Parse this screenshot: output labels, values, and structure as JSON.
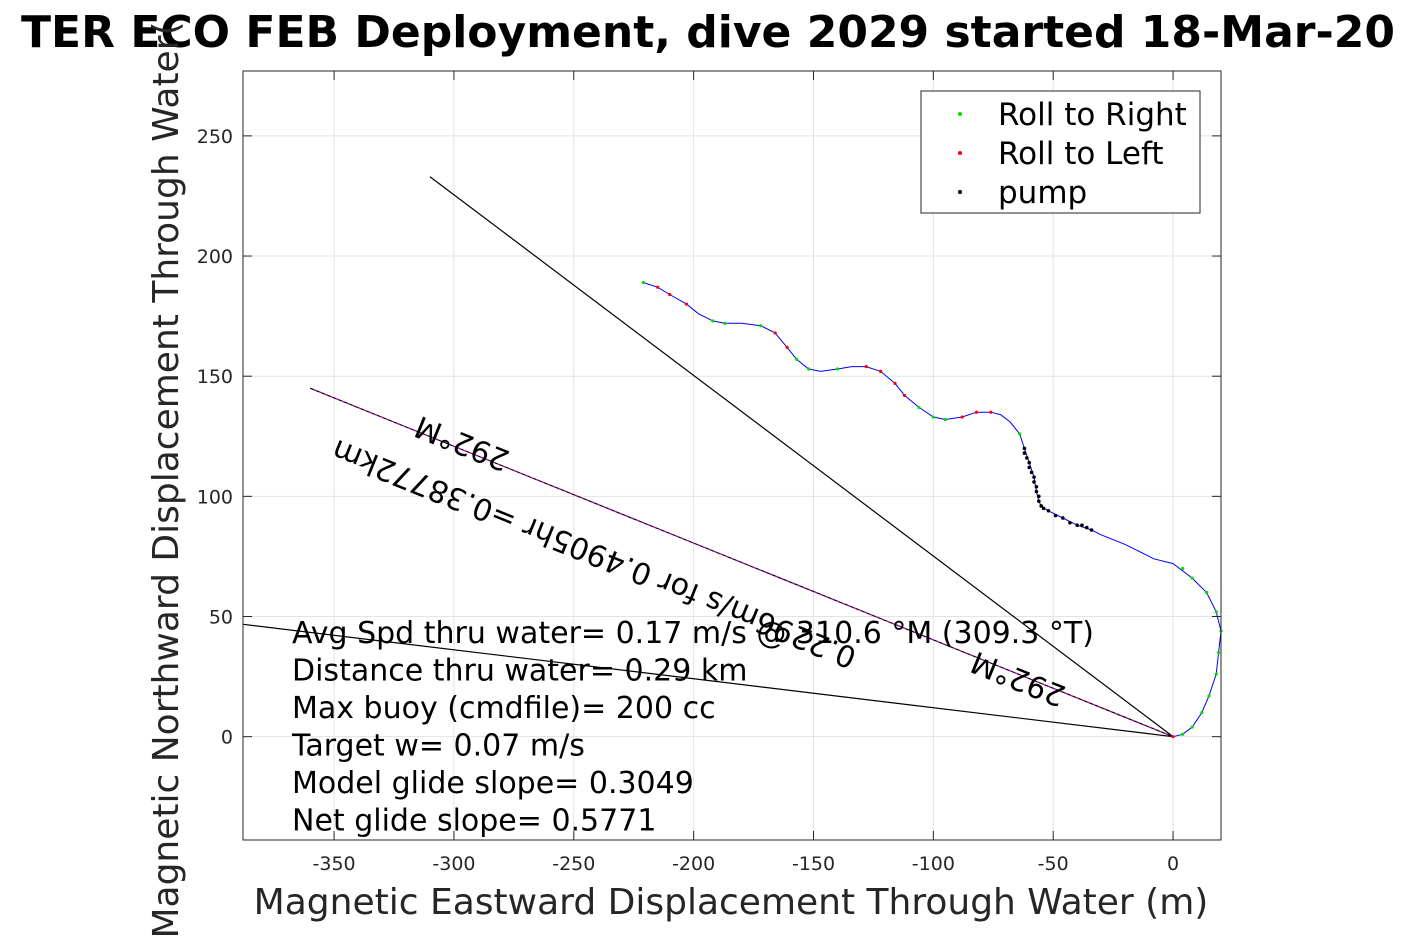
{
  "chart_data": {
    "type": "scatter",
    "title": "TER ECO FEB Deployment, dive 2029 started 18-Mar-20",
    "xlabel": "Magnetic Eastward Displacement Through Water (m)",
    "ylabel": "Magnetic Northward Displacement Through Water(",
    "xlim": [
      -388,
      20
    ],
    "ylim": [
      -43,
      277
    ],
    "xticks": [
      -350,
      -300,
      -250,
      -200,
      -150,
      -100,
      -50,
      0
    ],
    "yticks": [
      0,
      50,
      100,
      150,
      200,
      250
    ],
    "xtick_labels": [
      "-350",
      "-300",
      "-250",
      "-200",
      "-150",
      "-100",
      "-50",
      "0"
    ],
    "ytick_labels": [
      "0",
      "50",
      "100",
      "150",
      "200",
      "250"
    ],
    "grid": true,
    "legend_position": "top-right",
    "legend": [
      {
        "label": "Roll to Right",
        "color": "#00dd00"
      },
      {
        "label": "Roll to Left",
        "color": "#ff0000"
      },
      {
        "label": "pump",
        "color": "#000000"
      }
    ],
    "track_color": "#0000ff",
    "track": [
      [
        0,
        0
      ],
      [
        4,
        1
      ],
      [
        8,
        4
      ],
      [
        12,
        10
      ],
      [
        15,
        17
      ],
      [
        18,
        26
      ],
      [
        19,
        35
      ],
      [
        20,
        44
      ],
      [
        18,
        52
      ],
      [
        14,
        60
      ],
      [
        8,
        66
      ],
      [
        0,
        72
      ],
      [
        -8,
        74
      ],
      [
        -20,
        80
      ],
      [
        -30,
        84
      ],
      [
        -34,
        86
      ],
      [
        -40,
        88
      ],
      [
        -46,
        91
      ],
      [
        -52,
        94
      ],
      [
        -55,
        96
      ],
      [
        -56,
        98
      ],
      [
        -57,
        102
      ],
      [
        -58,
        108
      ],
      [
        -60,
        114
      ],
      [
        -62,
        120
      ],
      [
        -64,
        126
      ],
      [
        -68,
        131
      ],
      [
        -72,
        134
      ],
      [
        -76,
        135
      ],
      [
        -82,
        135
      ],
      [
        -88,
        133
      ],
      [
        -95,
        132
      ],
      [
        -100,
        133
      ],
      [
        -106,
        137
      ],
      [
        -112,
        142
      ],
      [
        -116,
        147
      ],
      [
        -122,
        152
      ],
      [
        -128,
        154
      ],
      [
        -134,
        154
      ],
      [
        -140,
        153
      ],
      [
        -147,
        152
      ],
      [
        -152,
        153
      ],
      [
        -157,
        157
      ],
      [
        -161,
        162
      ],
      [
        -166,
        168
      ],
      [
        -172,
        171
      ],
      [
        -180,
        172
      ],
      [
        -187,
        172
      ],
      [
        -192,
        173
      ],
      [
        -198,
        176
      ],
      [
        -203,
        180
      ],
      [
        -210,
        184
      ],
      [
        -215,
        187
      ],
      [
        -221,
        189
      ]
    ],
    "roll_right_points": [
      [
        19,
        35
      ],
      [
        20,
        44
      ],
      [
        18,
        52
      ],
      [
        14,
        60
      ],
      [
        8,
        66
      ],
      [
        4,
        70
      ],
      [
        12,
        10
      ],
      [
        15,
        17
      ],
      [
        18,
        26
      ],
      [
        8,
        4
      ],
      [
        4,
        1
      ],
      [
        -100,
        133
      ],
      [
        -106,
        137
      ],
      [
        -152,
        153
      ],
      [
        -157,
        157
      ],
      [
        -187,
        172
      ],
      [
        -192,
        173
      ],
      [
        -221,
        189
      ],
      [
        -140,
        153
      ],
      [
        -95,
        132
      ],
      [
        -64,
        126
      ],
      [
        -172,
        171
      ]
    ],
    "roll_left_points": [
      [
        0,
        0
      ],
      [
        -76,
        135
      ],
      [
        -82,
        135
      ],
      [
        -88,
        133
      ],
      [
        -116,
        147
      ],
      [
        -122,
        152
      ],
      [
        -161,
        162
      ],
      [
        -166,
        168
      ],
      [
        -203,
        180
      ],
      [
        -210,
        184
      ],
      [
        -215,
        187
      ],
      [
        -128,
        154
      ],
      [
        -112,
        142
      ]
    ],
    "pump_points": [
      [
        -34,
        86
      ],
      [
        -36,
        87
      ],
      [
        -38,
        88
      ],
      [
        -40,
        88
      ],
      [
        -43,
        89
      ],
      [
        -46,
        91
      ],
      [
        -49,
        92
      ],
      [
        -52,
        94
      ],
      [
        -54,
        95
      ],
      [
        -55,
        96
      ],
      [
        -56,
        98
      ],
      [
        -56,
        100
      ],
      [
        -57,
        102
      ],
      [
        -57,
        104
      ],
      [
        -58,
        106
      ],
      [
        -58,
        108
      ],
      [
        -59,
        110
      ],
      [
        -60,
        112
      ],
      [
        -60,
        114
      ],
      [
        -61,
        116
      ],
      [
        -62,
        118
      ],
      [
        -62,
        120
      ]
    ],
    "heading_line_1": {
      "from": [
        0,
        0
      ],
      "to": [
        -310,
        233
      ]
    },
    "heading_line_2": {
      "from": [
        0,
        0
      ],
      "to": [
        -390,
        47
      ]
    },
    "model_line": {
      "from": [
        0,
        0
      ],
      "to": [
        -360,
        145
      ],
      "color": "#cc00cc"
    },
    "rotated_labels": [
      {
        "text": "292°M",
        "at": [
          -295,
          126
        ]
      },
      {
        "text": "0.2296m/s for 0.4905hr =0.38772km",
        "at": [
          -240,
          80
        ]
      },
      {
        "text": "292°M",
        "at": [
          -63,
          28
        ]
      }
    ],
    "stats": [
      "Avg Spd thru water=  0.17 m/s @ 310.6 °M (309.3 °T)",
      "Distance thru water=  0.29 km",
      "Max buoy (cmdfile)= 200 cc",
      "Target w= 0.07 m/s",
      "Model glide slope= 0.3049",
      "Net glide slope= 0.5771"
    ]
  }
}
